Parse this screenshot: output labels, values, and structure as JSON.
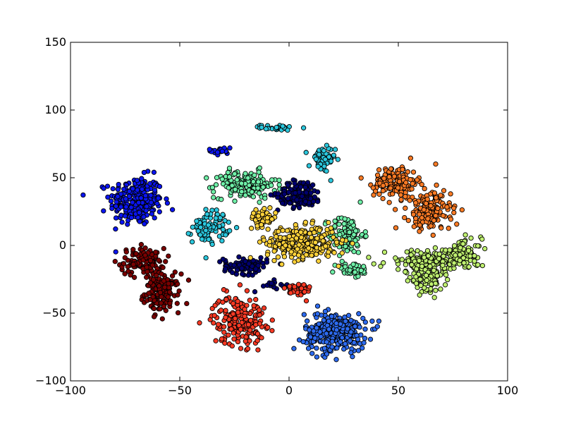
{
  "chart_data": {
    "type": "scatter",
    "title": "",
    "xlabel": "",
    "ylabel": "",
    "xlim": [
      -100,
      100
    ],
    "ylim": [
      -100,
      150
    ],
    "xticks": [
      -100,
      -50,
      0,
      50,
      100
    ],
    "yticks": [
      -100,
      -50,
      0,
      50,
      100,
      150
    ],
    "xtick_labels": [
      "−100",
      "−50",
      "0",
      "50",
      "100"
    ],
    "ytick_labels": [
      "−100",
      "−50",
      "0",
      "50",
      "100",
      "150"
    ],
    "grid": false,
    "legend": "none",
    "marker_edge_color": "#000000",
    "clusters": [
      {
        "color": "#0a14f0",
        "center": [
          -70,
          33
        ],
        "spread": [
          6,
          9
        ],
        "count": 260
      },
      {
        "color": "#0a14f0",
        "center": [
          -31,
          70
        ],
        "spread": [
          2.5,
          2
        ],
        "count": 25
      },
      {
        "color": "#7a0000",
        "center": [
          -67,
          -12
        ],
        "spread": [
          5,
          5
        ],
        "count": 110
      },
      {
        "color": "#7a0000",
        "center": [
          -58,
          -35
        ],
        "spread": [
          4,
          7
        ],
        "count": 150
      },
      {
        "color": "#2bc8de",
        "center": [
          -36,
          14
        ],
        "spread": [
          4,
          6
        ],
        "count": 90
      },
      {
        "color": "#2bc8de",
        "center": [
          -5,
          87
        ],
        "spread": [
          4,
          1
        ],
        "count": 30
      },
      {
        "color": "#2bc8de",
        "center": [
          15,
          63
        ],
        "spread": [
          3,
          5
        ],
        "count": 60
      },
      {
        "color": "#6ff0a8",
        "center": [
          -20,
          45
        ],
        "spread": [
          7,
          5
        ],
        "count": 160
      },
      {
        "color": "#6ff0a8",
        "center": [
          26,
          8
        ],
        "spread": [
          4,
          7
        ],
        "count": 110
      },
      {
        "color": "#6ff0a8",
        "center": [
          29,
          -18
        ],
        "spread": [
          4,
          3
        ],
        "count": 40
      },
      {
        "color": "#000070",
        "center": [
          5,
          38
        ],
        "spread": [
          5,
          5
        ],
        "count": 140
      },
      {
        "color": "#000070",
        "center": [
          -20,
          -15
        ],
        "spread": [
          5,
          3
        ],
        "count": 90
      },
      {
        "color": "#000070",
        "center": [
          -6,
          -30
        ],
        "spread": [
          3,
          2
        ],
        "count": 15
      },
      {
        "color": "#ffd23a",
        "center": [
          -12,
          20
        ],
        "spread": [
          3,
          3
        ],
        "count": 60
      },
      {
        "color": "#ffd23a",
        "center": [
          6,
          2
        ],
        "spread": [
          8,
          6
        ],
        "count": 300
      },
      {
        "color": "#ff3a24",
        "center": [
          -23,
          -55
        ],
        "spread": [
          6,
          9
        ],
        "count": 200
      },
      {
        "color": "#ff3a24",
        "center": [
          4,
          -33
        ],
        "spread": [
          3,
          3
        ],
        "count": 40
      },
      {
        "color": "#2d6bf0",
        "center": [
          21,
          -64
        ],
        "spread": [
          7,
          7
        ],
        "count": 300
      },
      {
        "color": "#ff7b24",
        "center": [
          49,
          47
        ],
        "spread": [
          5,
          6
        ],
        "count": 150
      },
      {
        "color": "#ff7b24",
        "center": [
          64,
          25
        ],
        "spread": [
          5,
          7
        ],
        "count": 180
      },
      {
        "color": "#bff070",
        "center": [
          64,
          -12
        ],
        "spread": [
          10,
          4
        ],
        "count": 190
      },
      {
        "color": "#bff070",
        "center": [
          80,
          -5
        ],
        "spread": [
          4,
          5
        ],
        "count": 80
      },
      {
        "color": "#bff070",
        "center": [
          63,
          -26
        ],
        "spread": [
          4,
          4
        ],
        "count": 80
      }
    ]
  }
}
